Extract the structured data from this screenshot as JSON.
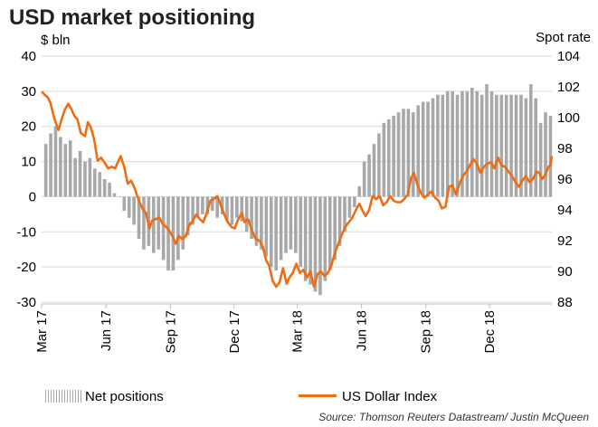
{
  "title": "USD market positioning",
  "left_axis_label": "$ bln",
  "right_axis_label": "Spot rate",
  "legend": {
    "bars": "Net positions",
    "line": "US Dollar Index"
  },
  "source": "Source: Thomson Reuters Datastream/ Justin McQueen",
  "colors": {
    "bars": "#a8a8a8",
    "line": "#ee6c14",
    "grid": "#d9d9d9"
  },
  "chart_data": {
    "type": "bar+line",
    "x_tick_labels": [
      "Mar 17",
      "Jun 17",
      "Sep 17",
      "Dec 17",
      "Mar 18",
      "Jun 18",
      "Sep 18",
      "Dec 18"
    ],
    "x_tick_dates": [
      "2017-03-01",
      "2017-06-01",
      "2017-09-01",
      "2017-12-01",
      "2018-03-01",
      "2018-06-01",
      "2018-09-01",
      "2018-12-01"
    ],
    "x_range": [
      "2017-03-01",
      "2019-02-28"
    ],
    "left_axis": {
      "ylim": [
        -30,
        40
      ],
      "ticks": [
        -30,
        -20,
        -10,
        0,
        10,
        20,
        30,
        40
      ]
    },
    "right_axis": {
      "ylim": [
        88,
        104
      ],
      "ticks": [
        88,
        90,
        92,
        94,
        96,
        98,
        100,
        102,
        104
      ]
    },
    "grid": "horizontal",
    "series": [
      {
        "name": "Net positions",
        "type": "bar",
        "axis": "left",
        "points": [
          [
            "2017-03-07",
            15
          ],
          [
            "2017-03-14",
            18
          ],
          [
            "2017-03-21",
            20
          ],
          [
            "2017-03-28",
            17
          ],
          [
            "2017-04-04",
            15
          ],
          [
            "2017-04-11",
            16
          ],
          [
            "2017-04-18",
            11
          ],
          [
            "2017-04-25",
            13
          ],
          [
            "2017-05-02",
            10
          ],
          [
            "2017-05-09",
            11
          ],
          [
            "2017-05-16",
            8
          ],
          [
            "2017-05-23",
            7
          ],
          [
            "2017-05-30",
            5
          ],
          [
            "2017-06-06",
            4
          ],
          [
            "2017-06-13",
            1
          ],
          [
            "2017-06-20",
            0
          ],
          [
            "2017-06-27",
            -4
          ],
          [
            "2017-07-04",
            -6
          ],
          [
            "2017-07-11",
            -8
          ],
          [
            "2017-07-18",
            -12
          ],
          [
            "2017-07-25",
            -15
          ],
          [
            "2017-08-01",
            -14
          ],
          [
            "2017-08-08",
            -16
          ],
          [
            "2017-08-15",
            -15
          ],
          [
            "2017-08-22",
            -18
          ],
          [
            "2017-08-29",
            -21
          ],
          [
            "2017-09-05",
            -21
          ],
          [
            "2017-09-12",
            -18
          ],
          [
            "2017-09-19",
            -15
          ],
          [
            "2017-09-26",
            -11
          ],
          [
            "2017-10-03",
            -8
          ],
          [
            "2017-10-10",
            -6
          ],
          [
            "2017-10-17",
            -5
          ],
          [
            "2017-10-24",
            -5
          ],
          [
            "2017-10-31",
            -4
          ],
          [
            "2017-11-07",
            -6
          ],
          [
            "2017-11-14",
            -5
          ],
          [
            "2017-11-21",
            -7
          ],
          [
            "2017-11-28",
            -8
          ],
          [
            "2017-12-05",
            -6
          ],
          [
            "2017-12-12",
            -7
          ],
          [
            "2017-12-19",
            -10
          ],
          [
            "2017-12-26",
            -12
          ],
          [
            "2018-01-02",
            -14
          ],
          [
            "2018-01-09",
            -15
          ],
          [
            "2018-01-16",
            -17
          ],
          [
            "2018-01-23",
            -20
          ],
          [
            "2018-01-30",
            -21
          ],
          [
            "2018-02-06",
            -18
          ],
          [
            "2018-02-13",
            -16
          ],
          [
            "2018-02-20",
            -15
          ],
          [
            "2018-02-27",
            -16
          ],
          [
            "2018-03-06",
            -20
          ],
          [
            "2018-03-13",
            -24
          ],
          [
            "2018-03-20",
            -25
          ],
          [
            "2018-03-27",
            -27
          ],
          [
            "2018-04-03",
            -28
          ],
          [
            "2018-04-10",
            -24
          ],
          [
            "2018-04-17",
            -21
          ],
          [
            "2018-04-24",
            -18
          ],
          [
            "2018-05-01",
            -14
          ],
          [
            "2018-05-08",
            -10
          ],
          [
            "2018-05-15",
            -6
          ],
          [
            "2018-05-22",
            -3
          ],
          [
            "2018-05-29",
            3
          ],
          [
            "2018-06-05",
            10
          ],
          [
            "2018-06-12",
            12
          ],
          [
            "2018-06-19",
            15
          ],
          [
            "2018-06-26",
            18
          ],
          [
            "2018-07-03",
            21
          ],
          [
            "2018-07-10",
            22
          ],
          [
            "2018-07-17",
            23
          ],
          [
            "2018-07-24",
            24
          ],
          [
            "2018-07-31",
            25
          ],
          [
            "2018-08-07",
            25
          ],
          [
            "2018-08-14",
            24
          ],
          [
            "2018-08-21",
            26
          ],
          [
            "2018-08-28",
            27
          ],
          [
            "2018-09-04",
            27
          ],
          [
            "2018-09-11",
            28
          ],
          [
            "2018-09-18",
            29
          ],
          [
            "2018-09-25",
            29
          ],
          [
            "2018-10-02",
            30
          ],
          [
            "2018-10-09",
            30
          ],
          [
            "2018-10-16",
            29
          ],
          [
            "2018-10-23",
            30
          ],
          [
            "2018-10-30",
            30
          ],
          [
            "2018-11-06",
            31
          ],
          [
            "2018-11-13",
            30
          ],
          [
            "2018-11-20",
            29
          ],
          [
            "2018-11-27",
            32
          ],
          [
            "2018-12-04",
            30
          ],
          [
            "2018-12-11",
            29
          ],
          [
            "2018-12-18",
            29
          ],
          [
            "2018-12-25",
            29
          ],
          [
            "2019-01-01",
            29
          ],
          [
            "2019-01-08",
            29
          ],
          [
            "2019-01-15",
            29
          ],
          [
            "2019-01-22",
            28
          ],
          [
            "2019-01-29",
            32
          ],
          [
            "2019-02-05",
            28
          ],
          [
            "2019-02-12",
            21
          ],
          [
            "2019-02-19",
            24
          ],
          [
            "2019-02-26",
            23
          ]
        ]
      },
      {
        "name": "US Dollar Index",
        "type": "line",
        "axis": "right",
        "points": [
          [
            "2017-03-01",
            101.7
          ],
          [
            "2017-03-05",
            101.5
          ],
          [
            "2017-03-10",
            101.3
          ],
          [
            "2017-03-14",
            100.9
          ],
          [
            "2017-03-17",
            100.3
          ],
          [
            "2017-03-21",
            99.7
          ],
          [
            "2017-03-25",
            99.2
          ],
          [
            "2017-03-29",
            99.8
          ],
          [
            "2017-04-03",
            100.5
          ],
          [
            "2017-04-08",
            100.9
          ],
          [
            "2017-04-12",
            100.6
          ],
          [
            "2017-04-17",
            100.1
          ],
          [
            "2017-04-21",
            99.9
          ],
          [
            "2017-04-26",
            99.0
          ],
          [
            "2017-05-02",
            98.8
          ],
          [
            "2017-05-06",
            99.7
          ],
          [
            "2017-05-10",
            99.4
          ],
          [
            "2017-05-15",
            98.6
          ],
          [
            "2017-05-20",
            97.2
          ],
          [
            "2017-05-25",
            97.4
          ],
          [
            "2017-05-31",
            97.0
          ],
          [
            "2017-06-04",
            96.7
          ],
          [
            "2017-06-09",
            96.8
          ],
          [
            "2017-06-14",
            96.7
          ],
          [
            "2017-06-18",
            97.1
          ],
          [
            "2017-06-22",
            97.5
          ],
          [
            "2017-06-27",
            96.8
          ],
          [
            "2017-07-02",
            95.7
          ],
          [
            "2017-07-07",
            95.9
          ],
          [
            "2017-07-12",
            95.4
          ],
          [
            "2017-07-18",
            94.6
          ],
          [
            "2017-07-23",
            94.1
          ],
          [
            "2017-07-28",
            93.8
          ],
          [
            "2017-08-02",
            92.8
          ],
          [
            "2017-08-06",
            93.3
          ],
          [
            "2017-08-11",
            93.4
          ],
          [
            "2017-08-16",
            93.5
          ],
          [
            "2017-08-21",
            93.1
          ],
          [
            "2017-08-26",
            92.9
          ],
          [
            "2017-08-31",
            92.6
          ],
          [
            "2017-09-05",
            92.2
          ],
          [
            "2017-09-09",
            91.8
          ],
          [
            "2017-09-13",
            92.3
          ],
          [
            "2017-09-18",
            92.1
          ],
          [
            "2017-09-23",
            92.3
          ],
          [
            "2017-09-28",
            93.0
          ],
          [
            "2017-10-03",
            93.3
          ],
          [
            "2017-10-08",
            93.7
          ],
          [
            "2017-10-13",
            93.4
          ],
          [
            "2017-10-18",
            93.2
          ],
          [
            "2017-10-23",
            93.8
          ],
          [
            "2017-10-28",
            94.6
          ],
          [
            "2017-11-02",
            94.7
          ],
          [
            "2017-11-07",
            94.9
          ],
          [
            "2017-11-12",
            94.3
          ],
          [
            "2017-11-17",
            93.7
          ],
          [
            "2017-11-22",
            93.2
          ],
          [
            "2017-11-27",
            92.9
          ],
          [
            "2017-12-02",
            92.8
          ],
          [
            "2017-12-07",
            93.4
          ],
          [
            "2017-12-12",
            93.8
          ],
          [
            "2017-12-16",
            93.2
          ],
          [
            "2017-12-21",
            93.4
          ],
          [
            "2017-12-27",
            92.6
          ],
          [
            "2018-01-01",
            92.1
          ],
          [
            "2018-01-06",
            92.0
          ],
          [
            "2018-01-11",
            91.6
          ],
          [
            "2018-01-16",
            90.7
          ],
          [
            "2018-01-20",
            90.4
          ],
          [
            "2018-01-25",
            89.4
          ],
          [
            "2018-01-30",
            89.0
          ],
          [
            "2018-02-04",
            89.3
          ],
          [
            "2018-02-09",
            90.2
          ],
          [
            "2018-02-14",
            89.2
          ],
          [
            "2018-02-18",
            89.6
          ],
          [
            "2018-02-23",
            89.9
          ],
          [
            "2018-02-28",
            90.5
          ],
          [
            "2018-03-05",
            89.9
          ],
          [
            "2018-03-10",
            90.1
          ],
          [
            "2018-03-15",
            89.6
          ],
          [
            "2018-03-20",
            90.0
          ],
          [
            "2018-03-25",
            89.0
          ],
          [
            "2018-03-30",
            89.8
          ],
          [
            "2018-04-04",
            90.0
          ],
          [
            "2018-04-09",
            89.7
          ],
          [
            "2018-04-14",
            89.9
          ],
          [
            "2018-04-19",
            90.4
          ],
          [
            "2018-04-24",
            91.2
          ],
          [
            "2018-04-29",
            91.8
          ],
          [
            "2018-05-04",
            92.4
          ],
          [
            "2018-05-09",
            92.9
          ],
          [
            "2018-05-14",
            93.2
          ],
          [
            "2018-05-19",
            93.5
          ],
          [
            "2018-05-24",
            94.0
          ],
          [
            "2018-05-29",
            94.4
          ],
          [
            "2018-06-02",
            94.0
          ],
          [
            "2018-06-07",
            93.6
          ],
          [
            "2018-06-12",
            94.0
          ],
          [
            "2018-06-17",
            94.9
          ],
          [
            "2018-06-22",
            94.7
          ],
          [
            "2018-06-27",
            94.9
          ],
          [
            "2018-07-02",
            94.3
          ],
          [
            "2018-07-07",
            94.5
          ],
          [
            "2018-07-12",
            94.9
          ],
          [
            "2018-07-17",
            94.6
          ],
          [
            "2018-07-22",
            94.5
          ],
          [
            "2018-07-27",
            94.5
          ],
          [
            "2018-08-01",
            94.7
          ],
          [
            "2018-08-06",
            95.0
          ],
          [
            "2018-08-11",
            96.1
          ],
          [
            "2018-08-15",
            96.4
          ],
          [
            "2018-08-20",
            95.6
          ],
          [
            "2018-08-25",
            95.1
          ],
          [
            "2018-08-30",
            94.8
          ],
          [
            "2018-09-04",
            95.0
          ],
          [
            "2018-09-09",
            95.2
          ],
          [
            "2018-09-14",
            94.8
          ],
          [
            "2018-09-19",
            94.6
          ],
          [
            "2018-09-24",
            94.1
          ],
          [
            "2018-09-29",
            94.2
          ],
          [
            "2018-10-04",
            95.5
          ],
          [
            "2018-10-09",
            95.6
          ],
          [
            "2018-10-14",
            95.0
          ],
          [
            "2018-10-19",
            95.7
          ],
          [
            "2018-10-24",
            96.2
          ],
          [
            "2018-10-29",
            96.5
          ],
          [
            "2018-11-03",
            96.9
          ],
          [
            "2018-11-08",
            97.3
          ],
          [
            "2018-11-13",
            97.0
          ],
          [
            "2018-11-18",
            96.4
          ],
          [
            "2018-11-23",
            96.8
          ],
          [
            "2018-11-28",
            97.0
          ],
          [
            "2018-12-03",
            97.1
          ],
          [
            "2018-12-08",
            96.7
          ],
          [
            "2018-12-13",
            97.4
          ],
          [
            "2018-12-18",
            96.9
          ],
          [
            "2018-12-23",
            96.8
          ],
          [
            "2018-12-28",
            96.5
          ],
          [
            "2019-01-02",
            96.2
          ],
          [
            "2019-01-07",
            95.8
          ],
          [
            "2019-01-12",
            95.5
          ],
          [
            "2019-01-17",
            95.9
          ],
          [
            "2019-01-22",
            96.2
          ],
          [
            "2019-01-27",
            95.8
          ],
          [
            "2019-02-01",
            96.0
          ],
          [
            "2019-02-06",
            96.5
          ],
          [
            "2019-02-10",
            96.4
          ],
          [
            "2019-02-14",
            96.0
          ],
          [
            "2019-02-19",
            96.3
          ],
          [
            "2019-02-23",
            96.8
          ],
          [
            "2019-02-26",
            96.9
          ],
          [
            "2019-02-28",
            97.5
          ]
        ]
      }
    ]
  }
}
